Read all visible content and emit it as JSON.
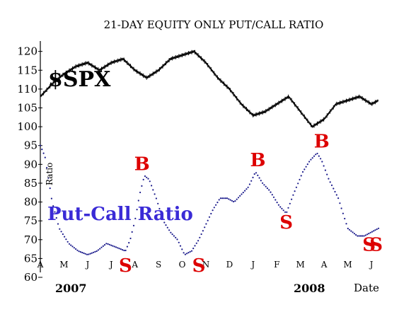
{
  "chart_data": {
    "type": "line",
    "title": "21-DAY EQUITY ONLY PUT/CALL RATIO",
    "xlabel": "Date",
    "ylim": [
      60,
      122
    ],
    "yticks": [
      60,
      65,
      70,
      75,
      80,
      85,
      90,
      95,
      100,
      105,
      110,
      115,
      120
    ],
    "month_labels": [
      "A",
      "M",
      "J",
      "J",
      "A",
      "S",
      "O",
      "N",
      "D",
      "J",
      "F",
      "M",
      "A",
      "M",
      "J"
    ],
    "year_labels": [
      "2007",
      "2008"
    ],
    "series": [
      {
        "name": "$SPX",
        "color": "#000000",
        "x": [
          0,
          0.3,
          0.6,
          1,
          1.5,
          2,
          2.5,
          3,
          3.5,
          4,
          4.5,
          5,
          5.5,
          6,
          6.5,
          7,
          7.5,
          8,
          8.5,
          9,
          9.5,
          10,
          10.5,
          11,
          11.5,
          12,
          12.5,
          13,
          13.5,
          14,
          14.3
        ],
        "values": [
          108,
          110,
          112,
          114,
          116,
          117,
          115,
          117,
          118,
          115,
          113,
          115,
          118,
          119,
          120,
          117,
          113,
          110,
          106,
          103,
          104,
          106,
          108,
          104,
          100,
          102,
          106,
          107,
          108,
          106,
          107
        ]
      },
      {
        "name": "Put-Call Ratio",
        "color": "#1b1b8c",
        "x": [
          0,
          0.2,
          0.5,
          0.8,
          1.2,
          1.6,
          2,
          2.4,
          2.8,
          3.2,
          3.6,
          3.8,
          4,
          4.2,
          4.4,
          4.6,
          4.9,
          5.2,
          5.5,
          5.8,
          6.1,
          6.4,
          6.7,
          7,
          7.3,
          7.6,
          7.9,
          8.2,
          8.5,
          8.8,
          9.1,
          9.4,
          9.7,
          10.1,
          10.4,
          10.7,
          11.1,
          11.4,
          11.7,
          11.9,
          12.2,
          12.6,
          13,
          13.4,
          13.7,
          14,
          14.3
        ],
        "values": [
          95,
          92,
          80,
          73,
          69,
          67,
          66,
          67,
          69,
          68,
          67,
          70,
          75,
          82,
          87,
          86,
          81,
          75,
          72,
          70,
          66,
          67,
          70,
          74,
          78,
          81,
          81,
          80,
          82,
          84,
          88,
          85,
          83,
          79,
          77,
          82,
          88,
          91,
          93,
          91,
          86,
          81,
          73,
          71,
          71,
          72,
          73
        ]
      }
    ],
    "annotations": [
      {
        "text": "B",
        "x": 4.3,
        "y": 88.5
      },
      {
        "text": "B",
        "x": 9.2,
        "y": 89.5
      },
      {
        "text": "B",
        "x": 11.9,
        "y": 94.5
      },
      {
        "text": "S",
        "x": 3.6,
        "y": 61.5
      },
      {
        "text": "S",
        "x": 6.7,
        "y": 61.5
      },
      {
        "text": "S",
        "x": 10.4,
        "y": 73
      },
      {
        "text": "S",
        "x": 13.9,
        "y": 67
      },
      {
        "text": "S",
        "x": 14.2,
        "y": 67
      }
    ],
    "labels": {
      "spx": "$SPX",
      "ratio_axis": "Ratio",
      "put_call": "Put-Call Ratio"
    },
    "colors": {
      "annotation": "#dd0000",
      "put_call_label": "#3a2bd6"
    },
    "grid": false
  }
}
